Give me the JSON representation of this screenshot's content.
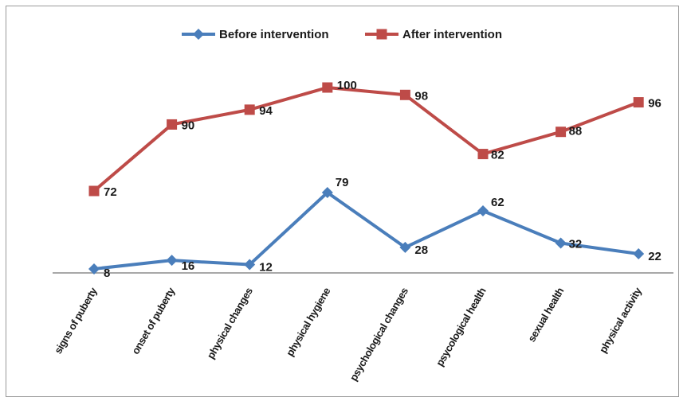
{
  "chart_data": {
    "type": "line",
    "categories": [
      "signs of puberty",
      "onset of puberty",
      "physical changes",
      "physical hygiene",
      "psychological changes",
      "psycological health",
      "sexual health",
      "physical activity"
    ],
    "series": [
      {
        "name": "Before intervention",
        "color": "#4a7ebb",
        "marker": "diamond",
        "values": [
          8,
          16,
          12,
          79,
          28,
          62,
          32,
          22
        ]
      },
      {
        "name": "After intervention",
        "color": "#be4b48",
        "marker": "square",
        "values": [
          72,
          90,
          94,
          100,
          98,
          82,
          88,
          96
        ]
      }
    ],
    "legend_position": "top",
    "grid": false
  }
}
